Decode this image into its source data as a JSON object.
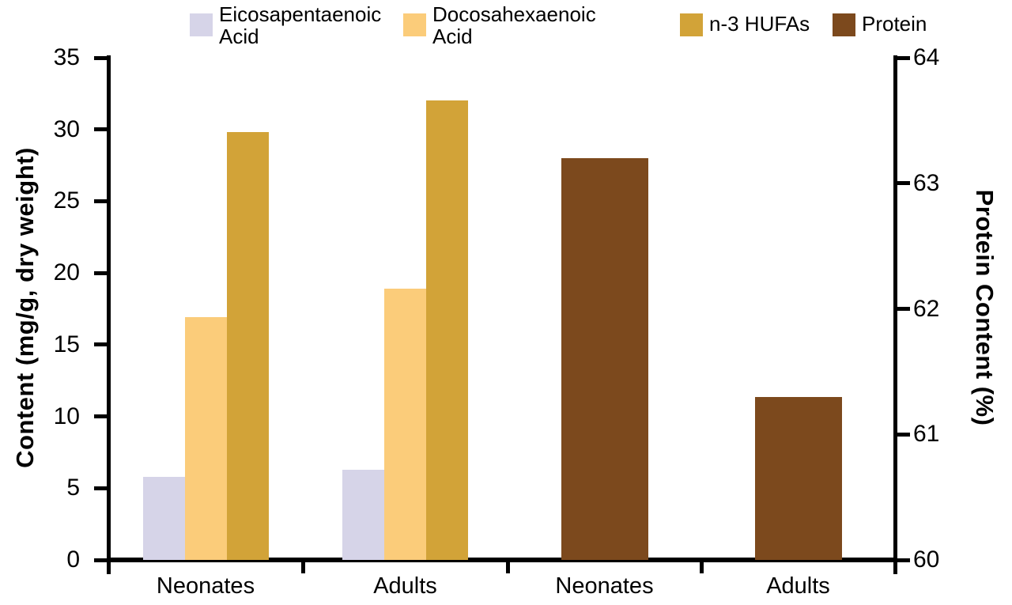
{
  "legend": {
    "items": [
      {
        "name": "eicosapentaenoic-acid",
        "lines": [
          "Eicosapentaenoic",
          "Acid"
        ],
        "color": "#d6d4e8"
      },
      {
        "name": "docosahexaenoic-acid",
        "lines": [
          "Docosahexaenoic",
          "Acid"
        ],
        "color": "#fbcc7a"
      },
      {
        "name": "n3-hufas",
        "lines": [
          "n-3 HUFAs"
        ],
        "color": "#d2a338"
      },
      {
        "name": "protein",
        "lines": [
          "Protein"
        ],
        "color": "#7c491d"
      }
    ]
  },
  "chart_data": {
    "type": "bar",
    "title": "",
    "left_axis": {
      "label": "Content (mg/g, dry weight)",
      "min": 0,
      "max": 35,
      "tick_step": 5,
      "ticks": [
        0,
        5,
        10,
        15,
        20,
        25,
        30,
        35
      ]
    },
    "right_axis": {
      "label": "Protein Content (%)",
      "min": 60,
      "max": 64,
      "tick_step": 1,
      "ticks": [
        60,
        61,
        62,
        63,
        64
      ]
    },
    "series_colors": {
      "Eicosapentaenoic Acid": "#d6d4e8",
      "Docosahexaenoic Acid": "#fbcc7a",
      "n-3 HUFAs": "#d2a338",
      "Protein": "#7c491d"
    },
    "legend_entries": [
      "Eicosapentaenoic Acid",
      "Docosahexaenoic Acid",
      "n-3 HUFAs",
      "Protein"
    ],
    "legend_position": "top",
    "grid": false,
    "groups": [
      {
        "category": "Neonates",
        "axis": "left",
        "bars": [
          {
            "series": "Eicosapentaenoic Acid",
            "value": 5.8
          },
          {
            "series": "Docosahexaenoic Acid",
            "value": 16.9
          },
          {
            "series": "n-3 HUFAs",
            "value": 29.8
          }
        ]
      },
      {
        "category": "Adults",
        "axis": "left",
        "bars": [
          {
            "series": "Eicosapentaenoic Acid",
            "value": 6.3
          },
          {
            "series": "Docosahexaenoic Acid",
            "value": 18.9
          },
          {
            "series": "n-3 HUFAs",
            "value": 32.0
          }
        ]
      },
      {
        "category": "Neonates",
        "axis": "right",
        "bars": [
          {
            "series": "Protein",
            "value": 63.2
          }
        ]
      },
      {
        "category": "Adults",
        "axis": "right",
        "bars": [
          {
            "series": "Protein",
            "value": 61.3
          }
        ]
      }
    ]
  }
}
